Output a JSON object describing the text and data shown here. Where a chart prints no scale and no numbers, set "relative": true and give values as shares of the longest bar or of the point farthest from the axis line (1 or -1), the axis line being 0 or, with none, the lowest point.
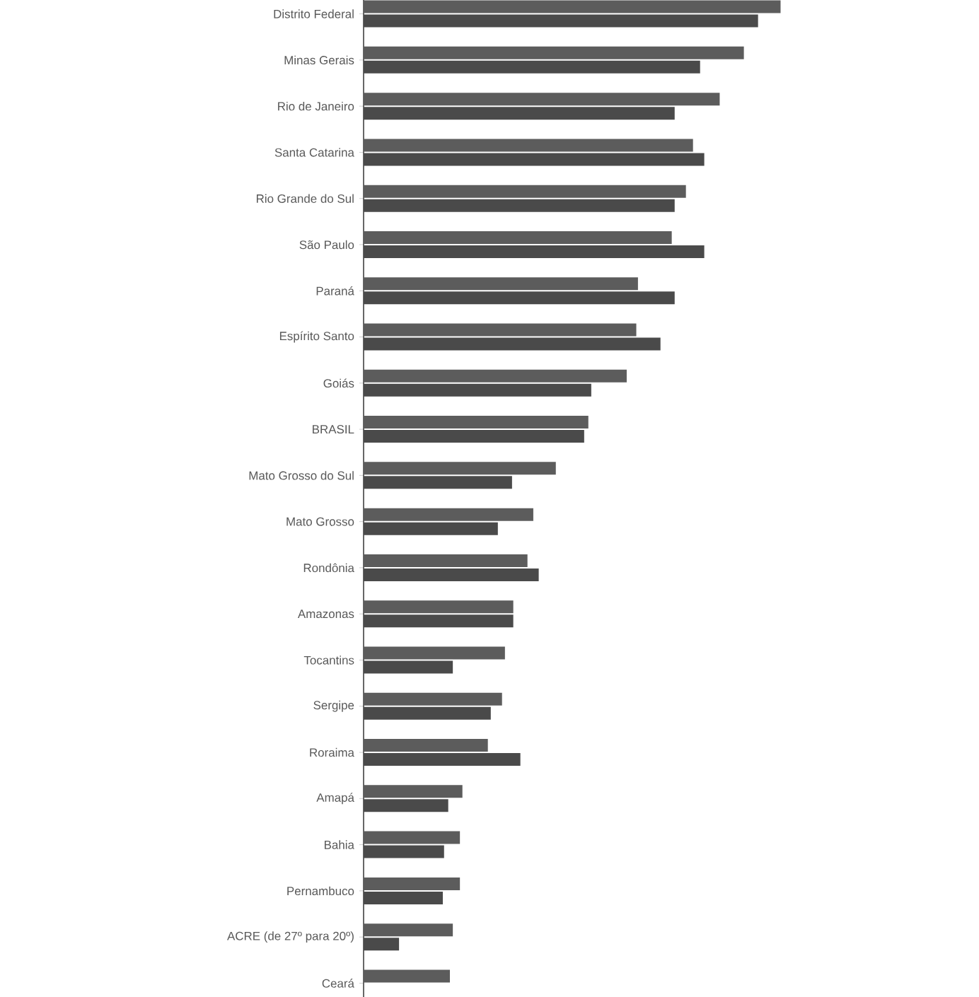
{
  "chart_data": {
    "type": "bar",
    "orientation": "horizontal",
    "relative": true,
    "categories": [
      "Distrito Federal",
      "Minas Gerais",
      "Rio de Janeiro",
      "Santa Catarina",
      "Rio Grande do Sul",
      "São Paulo",
      "Paraná",
      "Espírito Santo",
      "Goiás",
      "BRASIL",
      "Mato Grosso do Sul",
      "Mato Grosso",
      "Rondônia",
      "Amazonas",
      "Tocantins",
      "Sergipe",
      "Roraima",
      "Amapá",
      "Bahia",
      "Pernambuco",
      "ACRE (de 27º para 20º)",
      "Ceará"
    ],
    "series": [
      {
        "color": "#5c5c5c",
        "values": [
          1,
          0.912,
          0.854,
          0.79,
          0.773,
          0.739,
          0.658,
          0.654,
          0.631,
          0.539,
          0.461,
          0.407,
          0.393,
          0.359,
          0.339,
          0.332,
          0.298,
          0.237,
          0.231,
          0.231,
          0.214,
          0.207
        ]
      },
      {
        "color": "#4a4a4a",
        "values": [
          0.946,
          0.807,
          0.746,
          0.817,
          0.746,
          0.817,
          0.746,
          0.712,
          0.546,
          0.529,
          0.356,
          0.322,
          0.42,
          0.359,
          0.214,
          0.305,
          0.376,
          0.203,
          0.193,
          0.19,
          0.085,
          null
        ]
      }
    ]
  }
}
